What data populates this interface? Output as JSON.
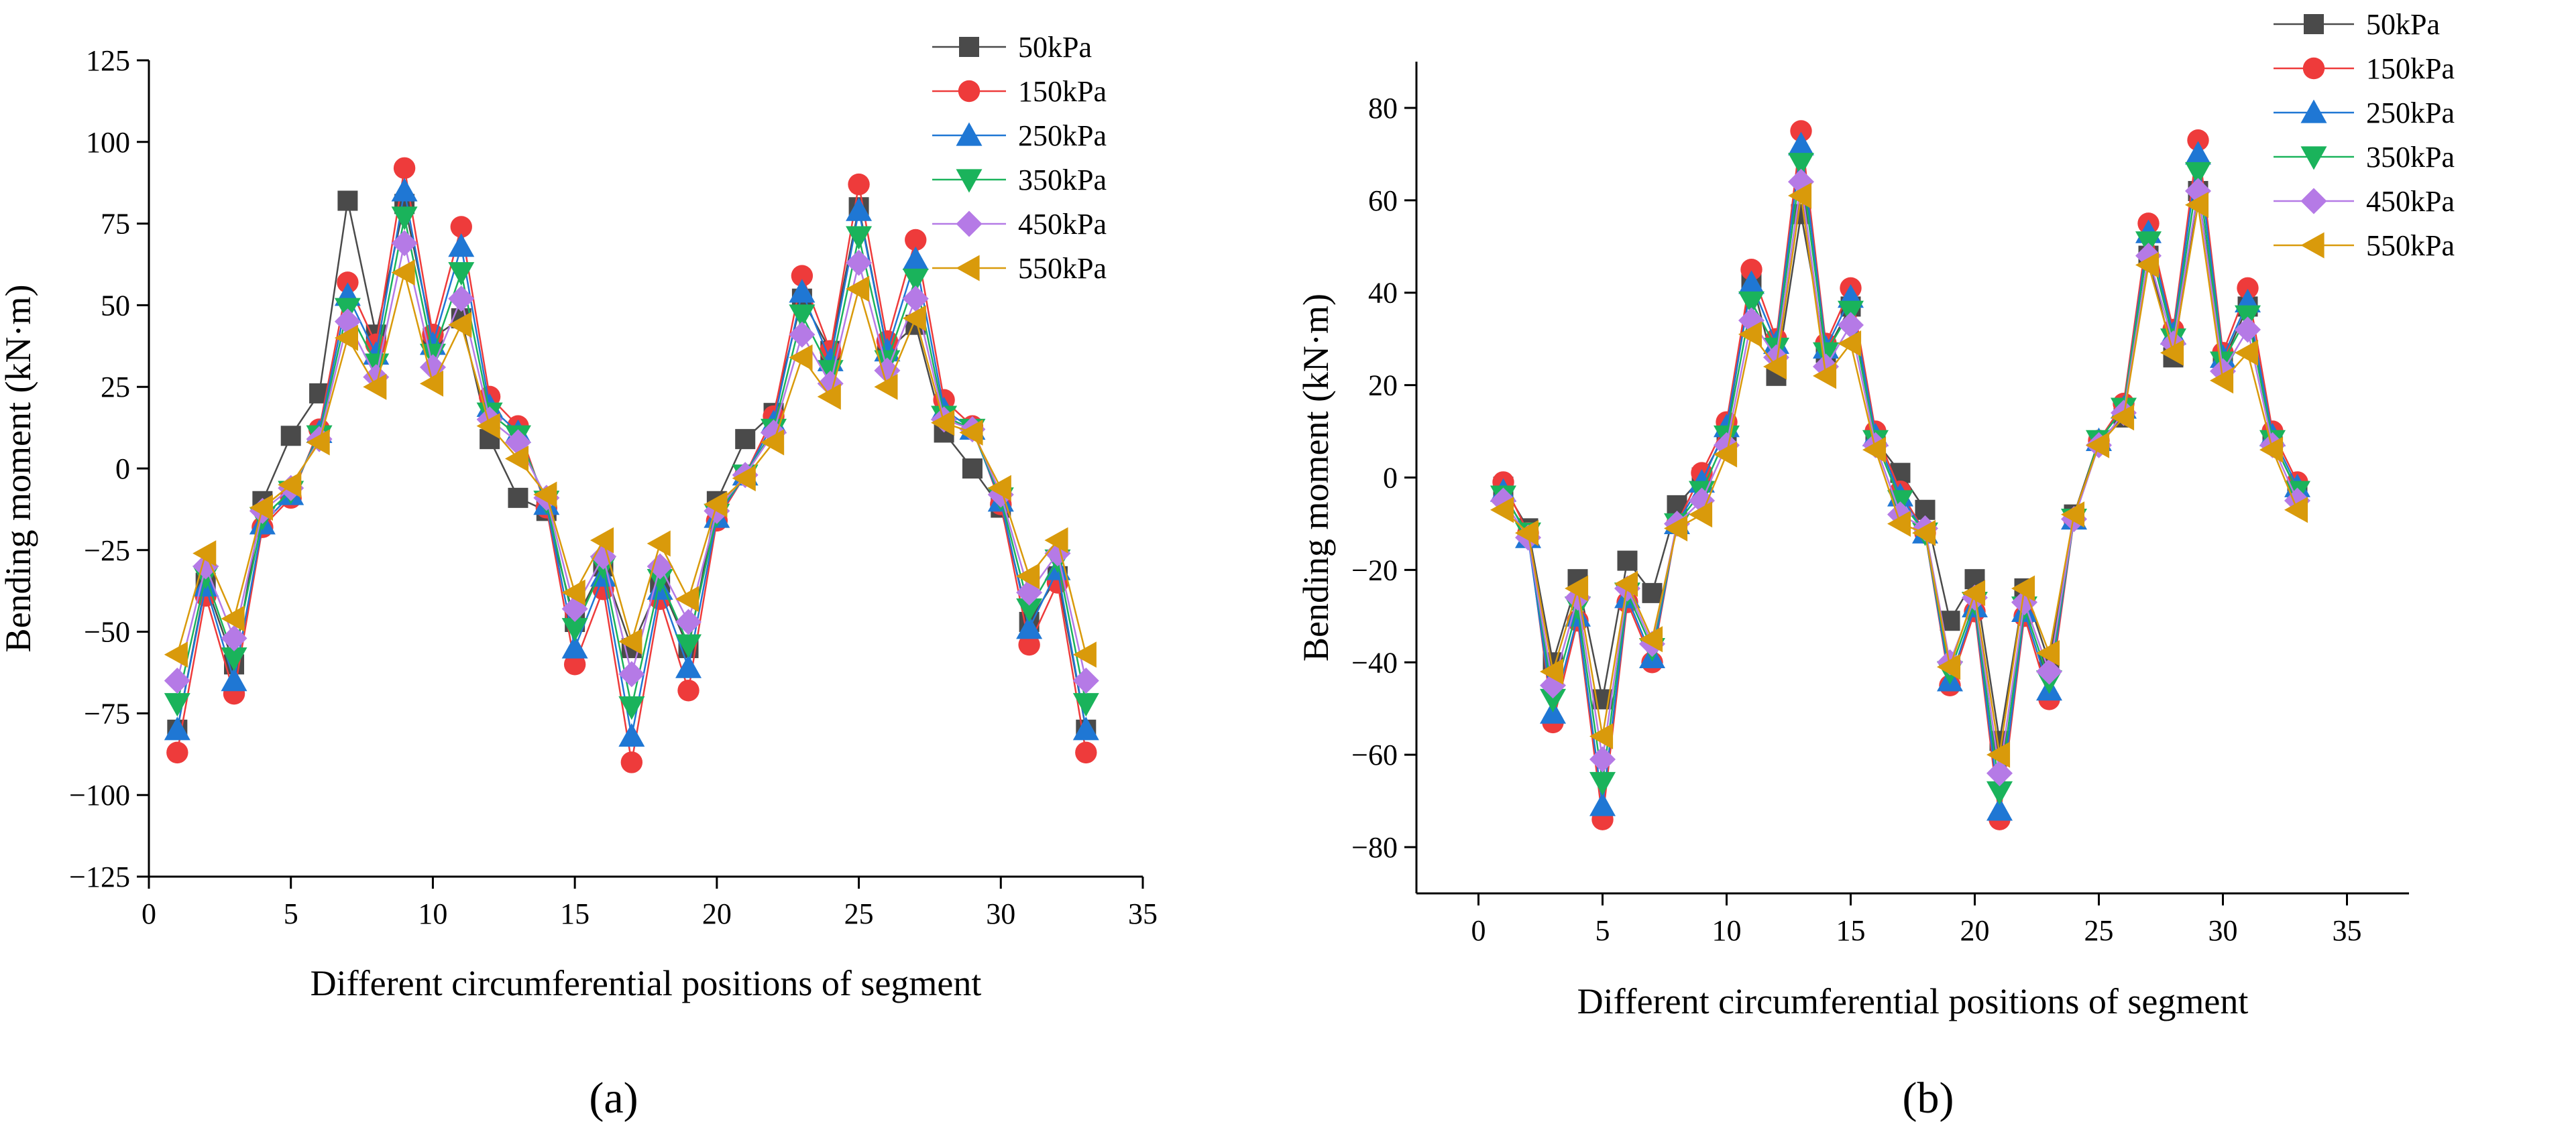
{
  "figure": {
    "panel_labels": [
      "(a)",
      "(b)"
    ]
  },
  "colors": {
    "50kPa": "#4a4a4a",
    "150kPa": "#ee3b3b",
    "250kPa": "#1f77d4",
    "350kPa": "#1ab35b",
    "450kPa": "#b57ae6",
    "550kPa": "#d99a0b"
  },
  "markers": {
    "50kPa": "square",
    "150kPa": "circle",
    "250kPa": "triangle-up",
    "350kPa": "triangle-down",
    "450kPa": "diamond",
    "550kPa": "triangle-left"
  },
  "chart_data": [
    {
      "type": "line",
      "panel": "(a)",
      "title": "",
      "xlabel": "Different circumferential positions of segment",
      "ylabel": "Bending moment (kN·m)",
      "xlim": [
        0,
        35
      ],
      "ylim": [
        -125,
        125
      ],
      "xticks": [
        0,
        5,
        10,
        15,
        20,
        25,
        30,
        35
      ],
      "yticks": [
        -125,
        -100,
        -75,
        -50,
        -25,
        0,
        25,
        50,
        75,
        100,
        125
      ],
      "x": [
        1,
        2,
        3,
        4,
        5,
        6,
        7,
        8,
        9,
        10,
        11,
        12,
        13,
        14,
        15,
        16,
        17,
        18,
        19,
        20,
        21,
        22,
        23,
        24,
        25,
        26,
        27,
        28,
        29,
        30,
        31,
        32,
        33
      ],
      "legend_position": "top-right",
      "series": [
        {
          "name": "50kPa",
          "values": [
            -80,
            -35,
            -60,
            -10,
            10,
            23,
            82,
            41,
            81,
            40,
            46,
            9,
            -9,
            -13,
            -47,
            -30,
            -55,
            -35,
            -55,
            -10,
            9,
            17,
            52,
            36,
            80,
            36,
            44,
            11,
            0,
            -12,
            -47,
            -33,
            -80
          ]
        },
        {
          "name": "150kPa",
          "values": [
            -87,
            -39,
            -69,
            -18,
            -9,
            12,
            57,
            38,
            92,
            41,
            74,
            22,
            13,
            -12,
            -60,
            -37,
            -90,
            -40,
            -68,
            -16,
            -2,
            16,
            59,
            36,
            87,
            39,
            70,
            21,
            13,
            -11,
            -54,
            -35,
            -87
          ]
        },
        {
          "name": "250kPa",
          "values": [
            -80,
            -36,
            -65,
            -17,
            -8,
            11,
            53,
            35,
            85,
            38,
            68,
            19,
            11,
            -11,
            -55,
            -33,
            -82,
            -37,
            -61,
            -15,
            -2,
            14,
            54,
            33,
            79,
            36,
            64,
            18,
            12,
            -10,
            -49,
            -31,
            -80
          ]
        },
        {
          "name": "350kPa",
          "values": [
            -72,
            -33,
            -58,
            -15,
            -7,
            10,
            49,
            32,
            77,
            35,
            60,
            17,
            10,
            -10,
            -49,
            -30,
            -73,
            -34,
            -54,
            -14,
            -2,
            12,
            47,
            30,
            71,
            33,
            58,
            16,
            12,
            -9,
            -43,
            -28,
            -72
          ]
        },
        {
          "name": "450kPa",
          "values": [
            -65,
            -30,
            -52,
            -13,
            -6,
            9,
            45,
            28,
            69,
            31,
            52,
            15,
            8,
            -9,
            -43,
            -27,
            -63,
            -30,
            -47,
            -13,
            -2,
            11,
            41,
            26,
            63,
            30,
            52,
            15,
            12,
            -8,
            -38,
            -26,
            -65
          ]
        },
        {
          "name": "550kPa",
          "values": [
            -57,
            -26,
            -46,
            -12,
            -5,
            8,
            40,
            25,
            60,
            26,
            44,
            13,
            3,
            -8,
            -38,
            -22,
            -53,
            -23,
            -40,
            -11,
            -3,
            8,
            34,
            22,
            55,
            25,
            46,
            14,
            11,
            -6,
            -33,
            -22,
            -57
          ]
        }
      ]
    },
    {
      "type": "line",
      "panel": "(b)",
      "title": "",
      "xlabel": "Different circumferential positions of segment",
      "ylabel": "Bending moment (kN·m)",
      "xlim": [
        -2.5,
        37.5
      ],
      "ylim": [
        -90,
        90
      ],
      "xticks": [
        0,
        5,
        10,
        15,
        20,
        25,
        30,
        35
      ],
      "yticks": [
        -80,
        -60,
        -40,
        -20,
        0,
        20,
        40,
        60,
        80
      ],
      "x": [
        1,
        2,
        3,
        4,
        5,
        6,
        7,
        8,
        9,
        10,
        11,
        12,
        13,
        14,
        15,
        16,
        17,
        18,
        19,
        20,
        21,
        22,
        23,
        24,
        25,
        26,
        27,
        28,
        29,
        30,
        31,
        32,
        33
      ],
      "legend_position": "top-right",
      "series": [
        {
          "name": "50kPa",
          "values": [
            -2,
            -11,
            -40,
            -22,
            -48,
            -18,
            -25,
            -6,
            0,
            10,
            43,
            22,
            57,
            27,
            37,
            8,
            1,
            -7,
            -31,
            -22,
            -57,
            -24,
            -40,
            -8,
            8,
            13,
            48,
            26,
            62,
            25,
            37,
            8,
            -3
          ]
        },
        {
          "name": "150kPa",
          "values": [
            -1,
            -12,
            -53,
            -31,
            -74,
            -27,
            -40,
            -10,
            1,
            12,
            45,
            30,
            75,
            29,
            41,
            10,
            -3,
            -12,
            -45,
            -29,
            -74,
            -30,
            -48,
            -9,
            8,
            16,
            55,
            32,
            73,
            27,
            41,
            10,
            -1
          ]
        },
        {
          "name": "250kPa",
          "values": [
            -3,
            -13,
            -51,
            -30,
            -71,
            -26,
            -39,
            -10,
            -1,
            11,
            42,
            29,
            72,
            28,
            39,
            9,
            -4,
            -12,
            -44,
            -28,
            -72,
            -29,
            -46,
            -9,
            8,
            15,
            53,
            31,
            70,
            26,
            38,
            9,
            -2
          ]
        },
        {
          "name": "350kPa",
          "values": [
            -4,
            -12,
            -48,
            -28,
            -66,
            -25,
            -37,
            -10,
            -3,
            9,
            38,
            28,
            68,
            27,
            36,
            8,
            -5,
            -12,
            -42,
            -27,
            -68,
            -28,
            -44,
            -9,
            8,
            15,
            51,
            30,
            66,
            25,
            35,
            8,
            -3
          ]
        },
        {
          "name": "450kPa",
          "values": [
            -5,
            -13,
            -45,
            -26,
            -61,
            -24,
            -36,
            -10,
            -5,
            7,
            34,
            26,
            64,
            24,
            33,
            7,
            -8,
            -11,
            -40,
            -26,
            -64,
            -27,
            -42,
            -9,
            7,
            14,
            48,
            29,
            62,
            23,
            32,
            7,
            -5
          ]
        },
        {
          "name": "550kPa",
          "values": [
            -7,
            -12,
            -42,
            -24,
            -56,
            -23,
            -35,
            -11,
            -8,
            5,
            31,
            24,
            61,
            22,
            29,
            6,
            -10,
            -12,
            -41,
            -25,
            -60,
            -24,
            -38,
            -8,
            7,
            13,
            46,
            27,
            59,
            21,
            27,
            6,
            -7
          ]
        }
      ]
    }
  ]
}
